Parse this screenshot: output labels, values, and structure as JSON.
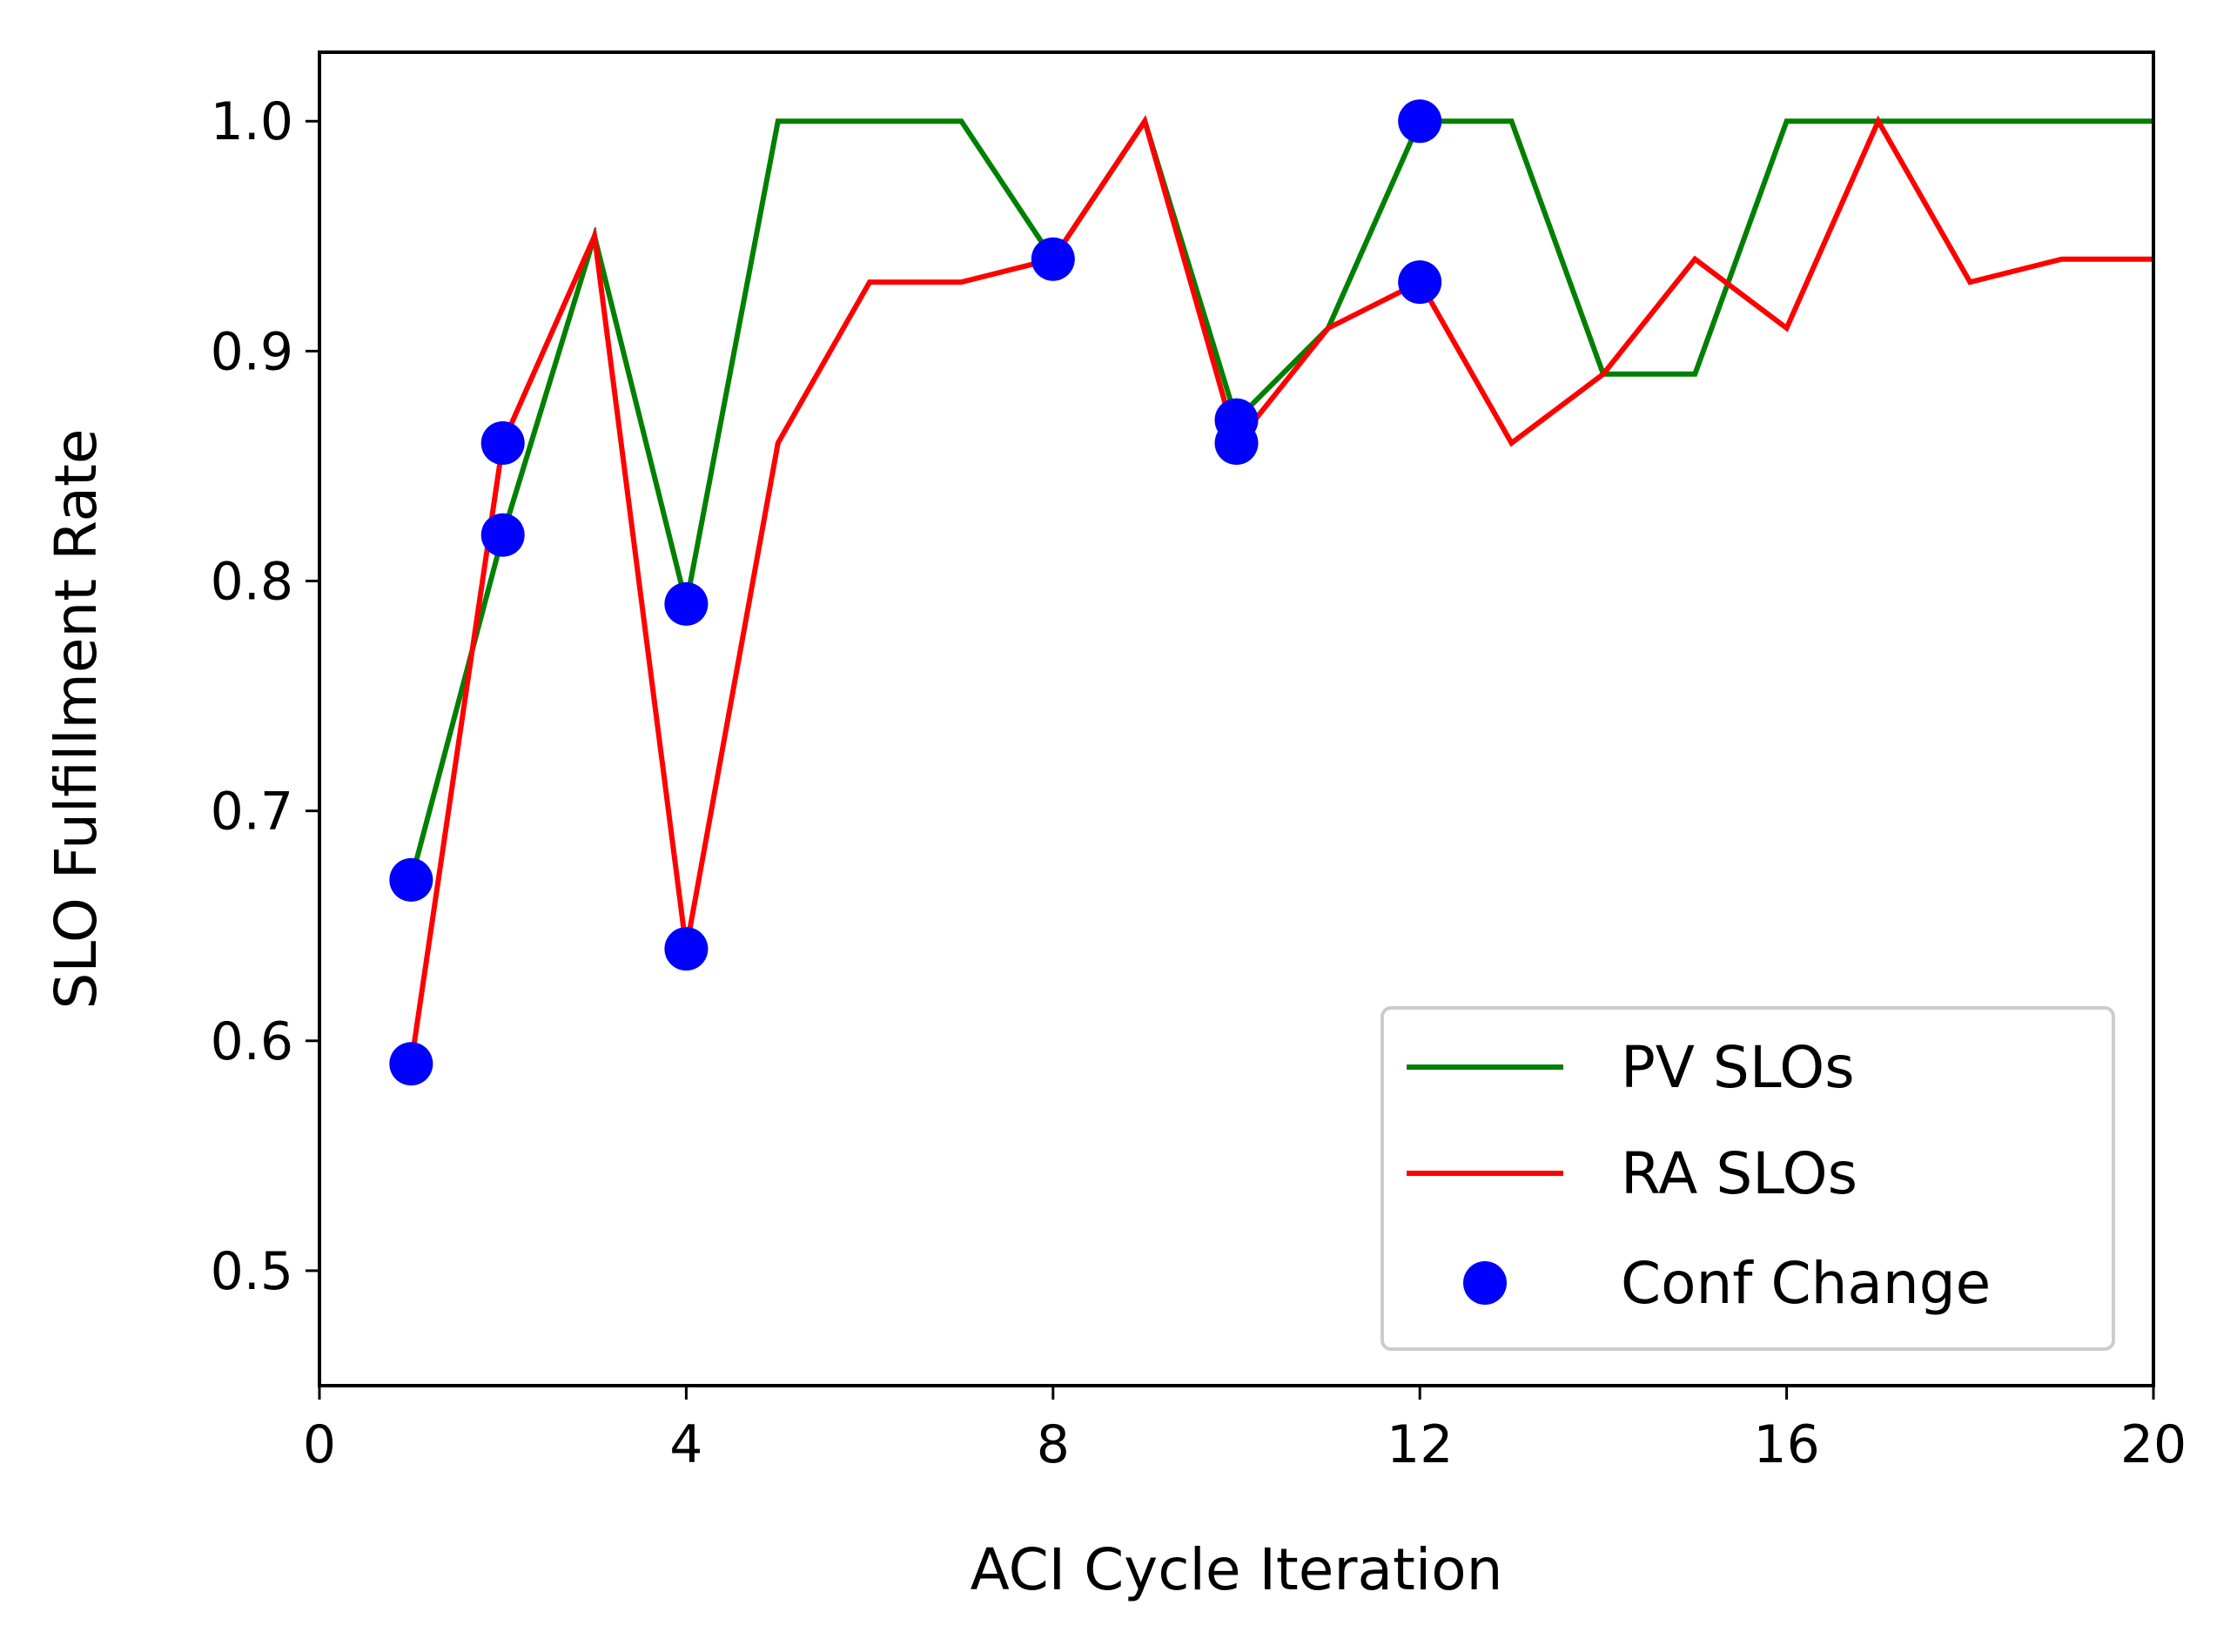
{
  "chart_data": {
    "type": "line",
    "title": "",
    "xlabel": "ACI Cycle Iteration",
    "ylabel": "SLO Fulfillment Rate",
    "xlim": [
      0,
      20
    ],
    "ylim": [
      0.45,
      1.03
    ],
    "xticks": [
      0,
      4,
      8,
      12,
      16,
      20
    ],
    "yticks": [
      0.5,
      0.6,
      0.7,
      0.8,
      0.9,
      1.0
    ],
    "xtick_labels": [
      "0",
      "4",
      "8",
      "12",
      "16",
      "20"
    ],
    "ytick_labels": [
      "0.5",
      "0.6",
      "0.7",
      "0.8",
      "0.9",
      "1.0"
    ],
    "grid": false,
    "legend_position": "bottom-right",
    "series": [
      {
        "name": "PV SLOs",
        "kind": "line",
        "color": "#008000",
        "x": [
          1,
          2,
          3,
          4,
          5,
          6,
          7,
          8,
          9,
          10,
          11,
          12,
          13,
          14,
          15,
          16,
          17,
          18,
          19,
          20
        ],
        "y": [
          0.67,
          0.82,
          0.95,
          0.79,
          1.0,
          1.0,
          1.0,
          0.94,
          1.0,
          0.87,
          0.91,
          1.0,
          1.0,
          0.89,
          0.89,
          1.0,
          1.0,
          1.0,
          1.0,
          1.0
        ]
      },
      {
        "name": "RA SLOs",
        "kind": "line",
        "color": "#ff0000",
        "x": [
          1,
          2,
          3,
          4,
          5,
          6,
          7,
          8,
          9,
          10,
          11,
          12,
          13,
          14,
          15,
          16,
          17,
          18,
          19,
          20
        ],
        "y": [
          0.59,
          0.86,
          0.95,
          0.64,
          0.86,
          0.93,
          0.93,
          0.94,
          1.0,
          0.86,
          0.91,
          0.93,
          0.86,
          0.89,
          0.94,
          0.91,
          1.0,
          0.93,
          0.94,
          0.94
        ]
      },
      {
        "name": "Conf Change",
        "kind": "scatter",
        "color": "#0000ff",
        "x": [
          1,
          1,
          2,
          2,
          4,
          4,
          8,
          10,
          10,
          12,
          12
        ],
        "y": [
          0.67,
          0.59,
          0.82,
          0.86,
          0.79,
          0.64,
          0.94,
          0.87,
          0.86,
          1.0,
          0.93
        ]
      }
    ]
  }
}
